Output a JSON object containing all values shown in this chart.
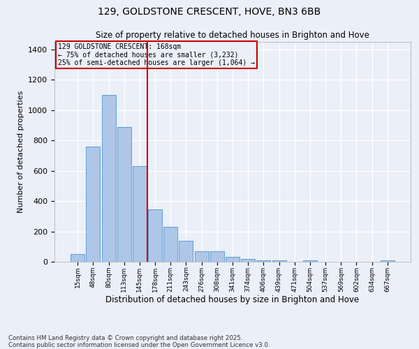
{
  "title": "129, GOLDSTONE CRESCENT, HOVE, BN3 6BB",
  "subtitle": "Size of property relative to detached houses in Brighton and Hove",
  "xlabel": "Distribution of detached houses by size in Brighton and Hove",
  "ylabel": "Number of detached properties",
  "categories": [
    "15sqm",
    "48sqm",
    "80sqm",
    "113sqm",
    "145sqm",
    "178sqm",
    "211sqm",
    "243sqm",
    "276sqm",
    "308sqm",
    "341sqm",
    "374sqm",
    "406sqm",
    "439sqm",
    "471sqm",
    "504sqm",
    "537sqm",
    "569sqm",
    "602sqm",
    "634sqm",
    "667sqm"
  ],
  "values": [
    50,
    760,
    1100,
    890,
    630,
    345,
    230,
    140,
    70,
    70,
    30,
    20,
    10,
    10,
    0,
    10,
    0,
    0,
    0,
    0,
    10
  ],
  "bar_color": "#aec6e8",
  "bar_edge_color": "#5a9fd4",
  "annotation_line1": "129 GOLDSTONE CRESCENT: 168sqm",
  "annotation_line2": "← 75% of detached houses are smaller (3,232)",
  "annotation_line3": "25% of semi-detached houses are larger (1,064) →",
  "ylim": [
    0,
    1450
  ],
  "yticks": [
    0,
    200,
    400,
    600,
    800,
    1000,
    1200,
    1400
  ],
  "footer": "Contains HM Land Registry data © Crown copyright and database right 2025.\nContains public sector information licensed under the Open Government Licence v3.0.",
  "bg_color": "#eaeff8",
  "plot_bg_color": "#eaeff8",
  "grid_color": "#ffffff",
  "red_line_color": "#cc0000",
  "annotation_box_edge_color": "#cc0000"
}
